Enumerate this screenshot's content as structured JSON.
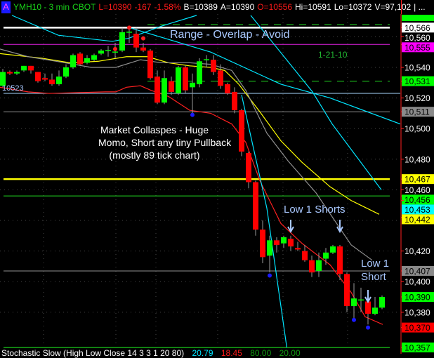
{
  "header": {
    "account_badge": "A",
    "symbol": "YMH10 - 3 min",
    "exchange": "CBOT",
    "last": "L=10390",
    "change": "-167",
    "change_pct": "-1.58%",
    "bid": "B=10389",
    "ask": "A=10390",
    "open": "O=10556",
    "high": "Hi=10591",
    "low": "Lo=10372",
    "volume": "V=97,102",
    "more": "| ..."
  },
  "annotations": {
    "range": "Range - Overlap - Avoid",
    "date": "1-21-10",
    "collapse_1": "Market Collaspes - Huge",
    "collapse_2": "Momo, Short any tiny Pullback",
    "collapse_3": "(mostly 89 tick chart)",
    "low1_shorts": "Low 1 Shorts",
    "low1_short_1": "Low 1",
    "low1_short_2": "Short",
    "left_level": "10523"
  },
  "footer": {
    "indicator": "Stochastic Slow (High Low Close 14 3 3 1 20 80)",
    "k": "20.79",
    "d": "18.45",
    "upper": "80.00",
    "lower": "20.00"
  },
  "colors": {
    "up": "#00ff00",
    "down": "#ff0000",
    "background": "#000000",
    "axis": "#ff2020",
    "text_blue": "#a9c8ff"
  },
  "chart_data": {
    "type": "candlestick",
    "ylim": [
      10352,
      10572
    ],
    "y_ticks": [
      10560,
      10540,
      10520,
      10500,
      10480,
      10460,
      10440,
      10420,
      10400,
      10380
    ],
    "grid": true,
    "candles": [
      [
        10528,
        10539,
        10527,
        10537
      ],
      [
        10537,
        10538,
        10535,
        10536
      ],
      [
        10536,
        10538,
        10535,
        10537
      ],
      [
        10538,
        10541,
        10537,
        10541
      ],
      [
        10541,
        10541,
        10536,
        10538
      ],
      [
        10537,
        10537,
        10530,
        10531
      ],
      [
        10533,
        10536,
        10531,
        10532
      ],
      [
        10532,
        10536,
        10528,
        10529
      ],
      [
        10529,
        10538,
        10528,
        10534
      ],
      [
        10534,
        10542,
        10533,
        10540
      ],
      [
        10540,
        10549,
        10539,
        10548
      ],
      [
        10549,
        10550,
        10541,
        10542
      ],
      [
        10543,
        10548,
        10542,
        10546
      ],
      [
        10545,
        10549,
        10544,
        10548
      ],
      [
        10549,
        10552,
        10548,
        10551
      ],
      [
        10551,
        10554,
        10547,
        10551
      ],
      [
        10550,
        10556,
        10546,
        10550
      ],
      [
        10551,
        10566,
        10550,
        10563
      ],
      [
        10563,
        10566,
        10556,
        10563
      ],
      [
        10562,
        10566,
        10550,
        10553
      ],
      [
        10553,
        10556,
        10550,
        10551
      ],
      [
        10551,
        10552,
        10532,
        10533
      ],
      [
        10534,
        10538,
        10516,
        10517
      ],
      [
        10517,
        10538,
        10516,
        10533
      ],
      [
        10531,
        10534,
        10522,
        10524
      ],
      [
        10523,
        10541,
        10522,
        10540
      ],
      [
        10540,
        10541,
        10523,
        10525
      ],
      [
        10527,
        10536,
        10510,
        10530
      ],
      [
        10529,
        10546,
        10527,
        10544
      ],
      [
        10545,
        10548,
        10540,
        10545
      ],
      [
        10545,
        10548,
        10535,
        10537
      ],
      [
        10538,
        10542,
        10526,
        10528
      ],
      [
        10529,
        10530,
        10522,
        10523
      ],
      [
        10524,
        10527,
        10510,
        10512
      ],
      [
        10512,
        10513,
        10482,
        10485
      ],
      [
        10484,
        10485,
        10461,
        10465
      ],
      [
        10465,
        10466,
        10430,
        10434
      ],
      [
        10434,
        10440,
        10412,
        10416
      ],
      [
        10417,
        10430,
        10406,
        10427
      ],
      [
        10427,
        10429,
        10419,
        10424
      ],
      [
        10425,
        10430,
        10422,
        10429
      ],
      [
        10428,
        10430,
        10420,
        10423
      ],
      [
        10422,
        10426,
        10420,
        10421
      ],
      [
        10420,
        10424,
        10413,
        10414
      ],
      [
        10414,
        10417,
        10403,
        10406
      ],
      [
        10407,
        10419,
        10403,
        10414
      ],
      [
        10415,
        10422,
        10411,
        10419
      ],
      [
        10419,
        10424,
        10418,
        10423
      ],
      [
        10423,
        10424,
        10401,
        10405
      ],
      [
        10405,
        10406,
        10380,
        10384
      ],
      [
        10384,
        10399,
        10376,
        10389
      ],
      [
        10388,
        10396,
        10380,
        10388
      ],
      [
        10387,
        10392,
        10372,
        10379
      ],
      [
        10379,
        10390,
        10378,
        10383
      ],
      [
        10383,
        10391,
        10382,
        10390
      ]
    ],
    "levels": [
      {
        "price": 10568,
        "color": "#22dd22",
        "style": "dashed"
      },
      {
        "price": 10566,
        "color": "#ffffff",
        "style": "solid-thick"
      },
      {
        "price": 10555,
        "color": "#e020e0",
        "style": "solid"
      },
      {
        "price": 10531,
        "color": "#22dd22",
        "style": "dashed"
      },
      {
        "price": 10523,
        "color": "#a9d8ff",
        "style": "solid"
      },
      {
        "price": 10511,
        "color": "#909090",
        "style": "solid"
      },
      {
        "price": 10467,
        "color": "#ffff00",
        "style": "solid-thick"
      },
      {
        "price": 10456,
        "color": "#22dd22",
        "style": "solid"
      },
      {
        "price": 10407,
        "color": "#909090",
        "style": "solid"
      },
      {
        "price": 10357,
        "color": "#22ff22",
        "style": "solid"
      }
    ],
    "overlays": [
      {
        "color": "#ff2020",
        "points": [
          [
            -0.4,
            10527
          ],
          [
            3.6,
            10524
          ],
          [
            6.6,
            10523
          ],
          [
            14.6,
            10524
          ],
          [
            16.1,
            10524
          ],
          [
            17.6,
            10527
          ],
          [
            19.6,
            10528
          ],
          [
            21.1,
            10525
          ],
          [
            23.6,
            10521
          ],
          [
            26.6,
            10512
          ],
          [
            29.6,
            10510
          ],
          [
            32.6,
            10503
          ],
          [
            34.6,
            10491
          ],
          [
            36.6,
            10466
          ],
          [
            39.6,
            10438
          ],
          [
            42.6,
            10425
          ],
          [
            46.6,
            10411
          ],
          [
            49.6,
            10393
          ],
          [
            51.6,
            10377
          ],
          [
            54.1,
            10372
          ]
        ]
      },
      {
        "color": "#ffff00",
        "points": [
          [
            -0.4,
            10549
          ],
          [
            5.6,
            10546
          ],
          [
            9.6,
            10543
          ],
          [
            13.6,
            10544
          ],
          [
            17.6,
            10547
          ],
          [
            20.6,
            10547
          ],
          [
            23.6,
            10543
          ],
          [
            26.6,
            10541
          ],
          [
            29.6,
            10540
          ],
          [
            31.6,
            10538
          ],
          [
            33.6,
            10529
          ],
          [
            36.6,
            10511
          ],
          [
            39.6,
            10492
          ],
          [
            42.6,
            10478
          ],
          [
            46.6,
            10462
          ],
          [
            49.6,
            10453
          ],
          [
            53.6,
            10444
          ]
        ]
      },
      {
        "color": "#909090",
        "points": [
          [
            -0.4,
            10552
          ],
          [
            3.6,
            10547
          ],
          [
            7.6,
            10544
          ],
          [
            12.6,
            10540
          ],
          [
            16.1,
            10540
          ],
          [
            19.6,
            10545
          ],
          [
            22.6,
            10543
          ],
          [
            26.6,
            10543
          ],
          [
            29.6,
            10542
          ],
          [
            32.6,
            10538
          ],
          [
            34.6,
            10525
          ],
          [
            37.6,
            10497
          ],
          [
            40.6,
            10479
          ],
          [
            44.6,
            10458
          ],
          [
            49.6,
            10424
          ],
          [
            52.6,
            10414
          ]
        ]
      },
      {
        "color": "#00e5ff",
        "points": [
          [
            1.3,
            10574
          ],
          [
            7.9,
            10561
          ],
          [
            15.6,
            10557
          ],
          [
            17.9,
            10559
          ],
          [
            22.6,
            10567
          ],
          [
            27.6,
            10574
          ]
        ]
      },
      {
        "color": "#00e5ff",
        "points": [
          [
            18,
            10566
          ],
          [
            29.6,
            10550
          ],
          [
            39.6,
            10529
          ],
          [
            46.6,
            10520
          ],
          [
            56.6,
            10503
          ]
        ]
      },
      {
        "color": "#00e5ff",
        "points": [
          [
            35.3,
            10574
          ],
          [
            44.1,
            10524
          ],
          [
            46.9,
            10503
          ],
          [
            53.9,
            10460
          ]
        ]
      },
      {
        "color": "#00e5ff",
        "points": [
          [
            34,
            10522
          ],
          [
            37.6,
            10448
          ],
          [
            40.5,
            10355
          ]
        ]
      }
    ],
    "swing_dots": [
      {
        "color": "#ff2020",
        "index": 18,
        "price": 10566
      },
      {
        "color": "#ff2020",
        "index": 20,
        "price": 10559
      },
      {
        "color": "#ff2020",
        "index": 16,
        "price": 10552
      },
      {
        "color": "#1a1aff",
        "index": 27,
        "price": 10509
      },
      {
        "color": "#1a1aff",
        "index": 38,
        "price": 10404
      },
      {
        "color": "#1a1aff",
        "index": 50,
        "price": 10375
      },
      {
        "color": "#1a1aff",
        "index": 52,
        "price": 10370
      }
    ],
    "axis_labels": [
      {
        "text": "10,566",
        "price": 10566,
        "bg": "#ffffff",
        "fg": "#000000"
      },
      {
        "text": "10,560",
        "price": 10560,
        "bg": "",
        "fg": "#ffffff"
      },
      {
        "text": "10,555",
        "price": 10555,
        "bg": "#ff00ff",
        "fg": "#000000"
      },
      {
        "text": "10,540",
        "price": 10540,
        "bg": "",
        "fg": "#ffffff"
      },
      {
        "text": "10,531",
        "price": 10531,
        "bg": "#00ff00",
        "fg": "#000000"
      },
      {
        "text": "10,520",
        "price": 10520,
        "bg": "",
        "fg": "#ffffff"
      },
      {
        "text": "10,511",
        "price": 10511,
        "bg": "#8a8a8a",
        "fg": "#000000"
      },
      {
        "text": "10,500",
        "price": 10500,
        "bg": "",
        "fg": "#ffffff"
      },
      {
        "text": "10,480",
        "price": 10480,
        "bg": "",
        "fg": "#ffffff"
      },
      {
        "text": "10,460",
        "price": 10460,
        "bg": "",
        "fg": "#ffffff"
      },
      {
        "text": "10,456",
        "price": 10456,
        "bg": "#00ff00",
        "fg": "#000000"
      },
      {
        "text": "10,467",
        "price": 10467,
        "bg": "#ffff00",
        "fg": "#000000"
      },
      {
        "text": "10,453",
        "price": 10453,
        "bg": "#00ffff",
        "fg": "#000000"
      },
      {
        "text": "10,442",
        "price": 10442,
        "bg": "#ffff00",
        "fg": "#000000"
      },
      {
        "text": "10,420",
        "price": 10420,
        "bg": "",
        "fg": "#ffffff"
      },
      {
        "text": "10,400",
        "price": 10400,
        "bg": "",
        "fg": "#ffffff"
      },
      {
        "text": "10,407",
        "price": 10407,
        "bg": "#8a8a8a",
        "fg": "#000000"
      },
      {
        "text": "10,390",
        "price": 10390,
        "bg": "#00ff00",
        "fg": "#000000"
      },
      {
        "text": "10,380",
        "price": 10380,
        "bg": "",
        "fg": "#ffffff"
      },
      {
        "text": "10,370",
        "price": 10370,
        "bg": "#ff0000",
        "fg": "#000000"
      },
      {
        "text": "10,357",
        "price": 10357,
        "bg": "#00ff00",
        "fg": "#000000"
      }
    ]
  }
}
